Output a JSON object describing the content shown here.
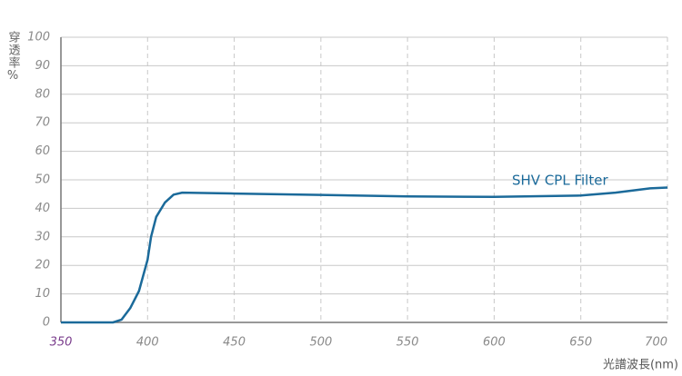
{
  "chart_data": {
    "type": "line",
    "y_label": "穿透率%",
    "x_label": "光譜波長(nm)",
    "annotation": "SHV CPL Filter",
    "x": [
      350,
      380,
      385,
      390,
      395,
      400,
      402,
      405,
      410,
      415,
      420,
      450,
      500,
      550,
      600,
      650,
      670,
      690,
      700
    ],
    "series": [
      {
        "name": "SHV CPL Filter",
        "color": "#1b6a9a",
        "values": [
          0,
          0,
          1,
          5,
          11,
          22,
          30,
          37,
          42,
          44.8,
          45.5,
          45.2,
          44.7,
          44.2,
          44.0,
          44.5,
          45.5,
          47,
          47.3
        ]
      }
    ],
    "xlim": [
      350,
      700
    ],
    "xticks": [
      350,
      400,
      450,
      500,
      550,
      600,
      650,
      700
    ],
    "ylim": [
      0,
      100
    ],
    "yticks": [
      0,
      10,
      20,
      30,
      40,
      50,
      60,
      70,
      80,
      90,
      100
    ],
    "grid": true
  }
}
